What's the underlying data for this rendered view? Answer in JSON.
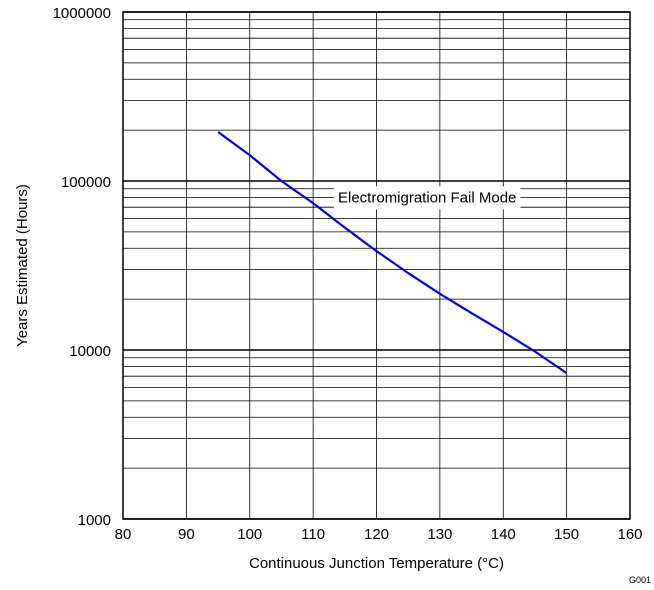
{
  "chart_data": {
    "type": "line",
    "xlabel": "Continuous Junction Temperature (°C)",
    "ylabel": "Years Estimated (Hours)",
    "xlim": [
      80,
      160
    ],
    "ylim": [
      1000,
      1000000
    ],
    "y_scale": "log",
    "grid": true,
    "x_ticks": [
      80,
      90,
      100,
      110,
      120,
      130,
      140,
      150,
      160
    ],
    "y_ticks": [
      1000,
      10000,
      100000,
      1000000
    ],
    "x_tick_labels": [
      "80",
      "90",
      "100",
      "110",
      "120",
      "130",
      "140",
      "150",
      "160"
    ],
    "y_tick_labels": [
      "1000",
      "10000",
      "100000",
      "1000000"
    ],
    "series": [
      {
        "name": "Electromigration Fail Mode",
        "color": "#0000ee",
        "x": [
          95,
          100,
          105,
          110,
          115,
          120,
          125,
          130,
          135,
          140,
          145,
          150
        ],
        "y": [
          195000,
          142000,
          100000,
          74000,
          53000,
          38500,
          28500,
          21500,
          16500,
          12800,
          9800,
          7300
        ]
      }
    ],
    "annotations": [
      {
        "text": "Electromigration Fail Mode",
        "x": 128,
        "y": 80000
      }
    ]
  },
  "figure_code": "G001"
}
